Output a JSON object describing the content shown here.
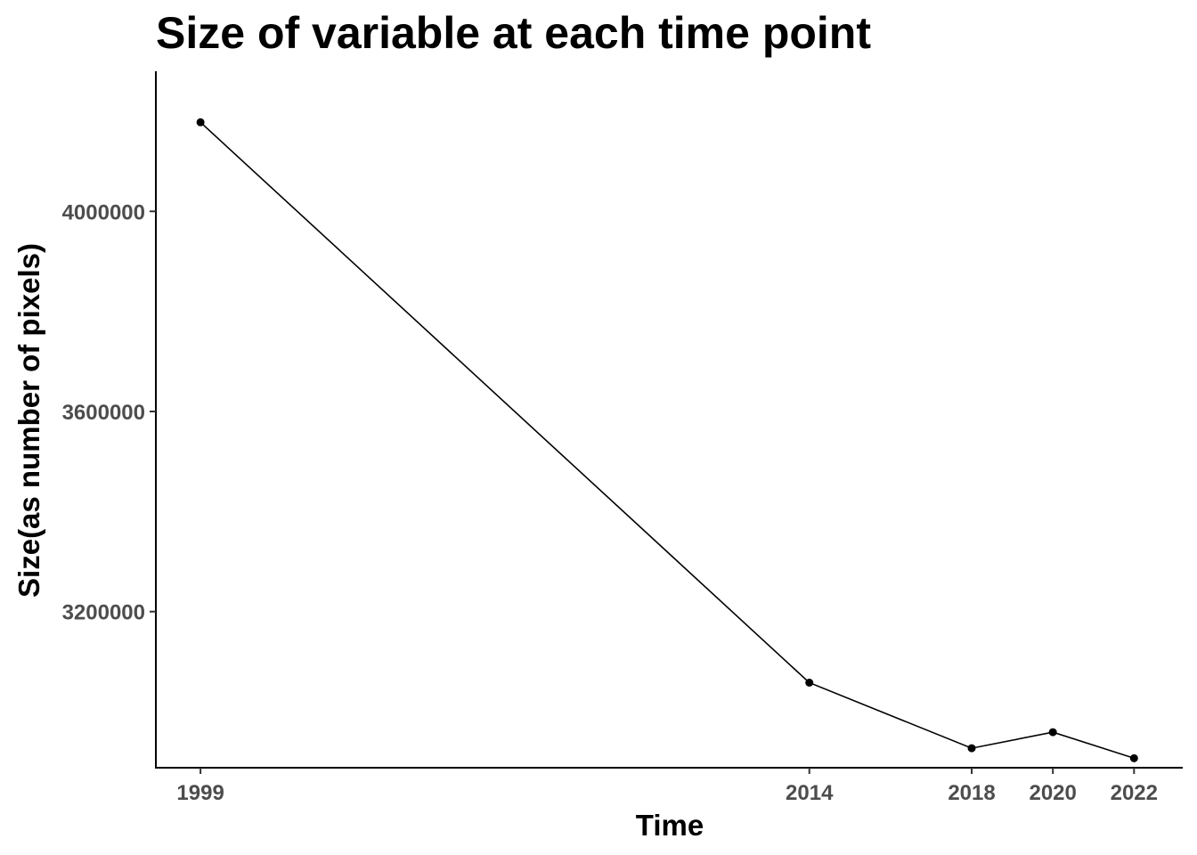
{
  "chart_data": {
    "type": "line",
    "title": "Size of variable at each time point",
    "xlabel": "Time",
    "ylabel": "Size(as number of pixels)",
    "x": [
      1999,
      2014,
      2018,
      2020,
      2022
    ],
    "x_tick_labels": [
      "1999",
      "2014",
      "2018",
      "2020",
      "2022"
    ],
    "xlim": [
      1997.9,
      2023.2
    ],
    "y_ticks": [
      3200000,
      3600000,
      4000000
    ],
    "y_tick_labels": [
      "3200000",
      "3600000",
      "4000000"
    ],
    "ylim": [
      2888000,
      4280000
    ],
    "series": [
      {
        "values": [
          4178000,
          3058000,
          2927000,
          2959000,
          2907000
        ],
        "color": "#000000"
      }
    ],
    "grid": false,
    "legend": "none",
    "markers": true
  }
}
